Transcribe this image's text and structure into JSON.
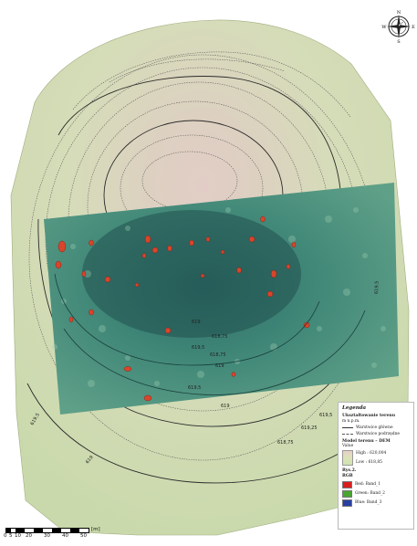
{
  "legend": {
    "title": "Legenda",
    "section_relief": "Ukształtowanie terenu",
    "units": "m n.p.m.",
    "main_contours": "Warstwice główne",
    "aux_contours": "Warstwice podrzędne",
    "dem_title": "Model terenu – DEM",
    "value_label": "Value",
    "high_label": "High : 620,004",
    "low_label": "Low : 618,85",
    "figure_label": "Rys.2.",
    "rgb_label": "RGB",
    "red_label": "Red:  Band_1",
    "green_label": "Green: Band_2",
    "blue_label": "Blue:  Band_3",
    "colors": {
      "red": "#d81f1f",
      "green": "#4aa531",
      "blue": "#283fa0"
    }
  },
  "compass": {
    "n": "N",
    "s": "S",
    "w": "W",
    "e": "E"
  },
  "scalebar": {
    "ticks": [
      "0",
      "5",
      "10",
      "20",
      "30",
      "40",
      "50"
    ],
    "unit": "[m]"
  },
  "contour_labels": [
    "619,5",
    "619",
    "618,75",
    "619,5",
    "619",
    "618,75",
    "619,5",
    "619",
    "619,5",
    "619,25",
    "618,75",
    "619",
    "619,5"
  ]
}
